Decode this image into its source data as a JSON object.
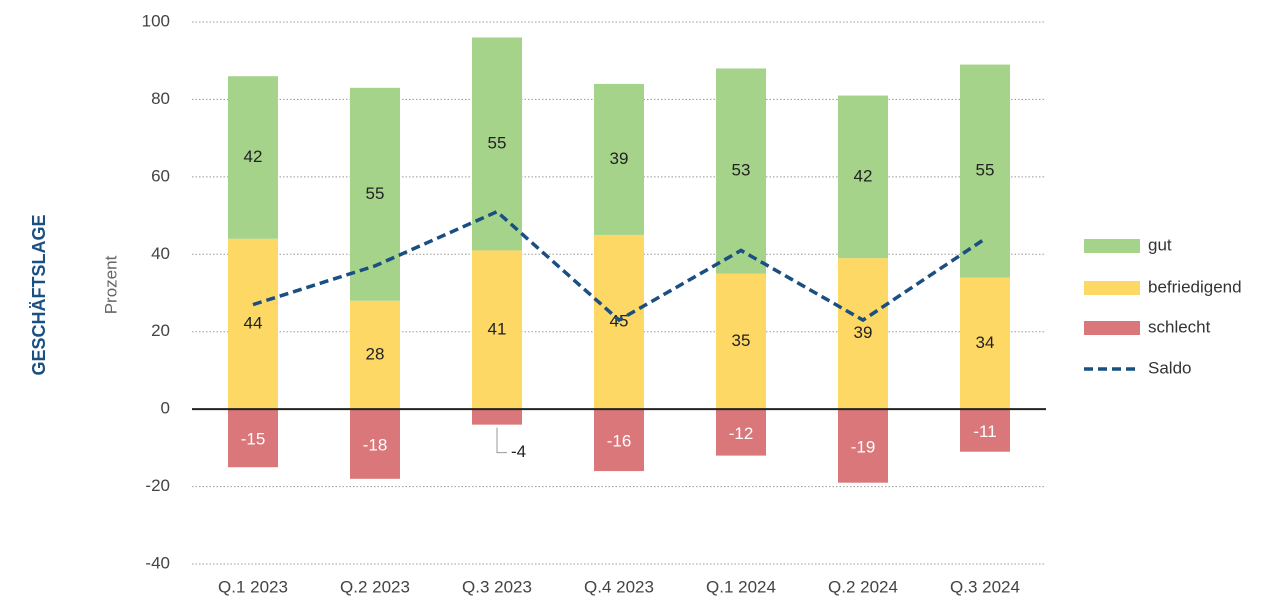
{
  "chart_data": {
    "type": "bar",
    "side_label": "GESCHÄFTSLAGE",
    "y_label": "Prozent",
    "categories": [
      "Q.1 2023",
      "Q.2 2023",
      "Q.3 2023",
      "Q.4 2023",
      "Q.1 2024",
      "Q.2 2024",
      "Q.3 2024"
    ],
    "series": [
      {
        "name": "gut",
        "type": "bar",
        "color": "#a6d38a",
        "values": [
          42,
          55,
          55,
          39,
          53,
          42,
          55
        ]
      },
      {
        "name": "befriedigend",
        "type": "bar",
        "color": "#fdd865",
        "values": [
          44,
          28,
          41,
          45,
          35,
          39,
          34
        ]
      },
      {
        "name": "schlecht",
        "type": "bar",
        "color": "#d9777a",
        "values": [
          -15,
          -18,
          -4,
          -16,
          -12,
          -19,
          -11
        ]
      },
      {
        "name": "Saldo",
        "type": "line",
        "color": "#1a4f82",
        "values": [
          27,
          37,
          51,
          23,
          41,
          23,
          44
        ]
      }
    ],
    "ylim": [
      -40,
      100
    ],
    "yticks": [
      -40,
      -20,
      0,
      20,
      40,
      60,
      80,
      100
    ],
    "grid": true,
    "legend": "right"
  }
}
